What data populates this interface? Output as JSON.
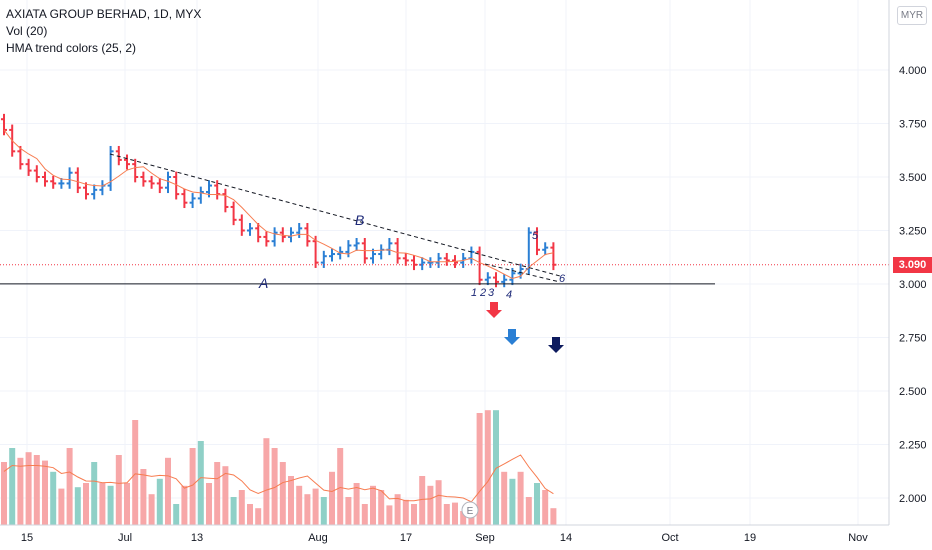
{
  "legend": {
    "symbol": "AXIATA GROUP BERHAD, 1D, MYX",
    "volume": "Vol (20)",
    "indicator": "HMA trend colors (25, 2)"
  },
  "currency_button": "MYR",
  "last_price": "3.090",
  "colors": {
    "up": "#2a7fd4",
    "down": "#f23645",
    "vol_up": "#8fd0c7",
    "vol_down": "#f7a7a8"
  },
  "chart_data": {
    "type": "line",
    "price_axis_ticks": [
      "4.000",
      "3.750",
      "3.500",
      "3.250",
      "3.000",
      "2.750",
      "2.500",
      "2.250",
      "2.000"
    ],
    "x_ticks": [
      "15",
      "Jul",
      "13",
      "Aug",
      "17",
      "Sep",
      "14",
      "Oct",
      "19",
      "Nov"
    ],
    "price_range": [
      1.9,
      4.25
    ],
    "price_line": 3.09,
    "support_level": 3.01,
    "annotations": {
      "line_A": "A",
      "line_B": "B",
      "waves": [
        "1",
        "2",
        "3",
        "4",
        "5",
        "6"
      ],
      "event_marker": "E"
    },
    "series": [
      {
        "name": "Close",
        "values": [
          3.72,
          3.62,
          3.56,
          3.53,
          3.5,
          3.48,
          3.47,
          3.47,
          3.52,
          3.45,
          3.42,
          3.44,
          3.46,
          3.62,
          3.58,
          3.56,
          3.5,
          3.48,
          3.47,
          3.45,
          3.5,
          3.42,
          3.38,
          3.4,
          3.43,
          3.46,
          3.42,
          3.36,
          3.3,
          3.25,
          3.26,
          3.22,
          3.2,
          3.24,
          3.22,
          3.24,
          3.26,
          3.2,
          3.1,
          3.13,
          3.14,
          3.15,
          3.18,
          3.19,
          3.12,
          3.14,
          3.16,
          3.19,
          3.12,
          3.11,
          3.09,
          3.1,
          3.1,
          3.12,
          3.11,
          3.1,
          3.12,
          3.15,
          3.02,
          3.03,
          3.01,
          3.02,
          3.05,
          3.07,
          3.24,
          3.16,
          3.17,
          3.09
        ]
      }
    ],
    "volume_bars": [
      0.45,
      0.55,
      0.48,
      0.52,
      0.5,
      0.46,
      0.38,
      0.26,
      0.55,
      0.27,
      0.3,
      0.45,
      0.3,
      0.28,
      0.5,
      0.3,
      0.75,
      0.4,
      0.22,
      0.33,
      0.48,
      0.15,
      0.28,
      0.55,
      0.6,
      0.3,
      0.45,
      0.42,
      0.2,
      0.25,
      0.15,
      0.12,
      0.62,
      0.55,
      0.45,
      0.35,
      0.28,
      0.22,
      0.26,
      0.2,
      0.38,
      0.55,
      0.2,
      0.3,
      0.15,
      0.28,
      0.25,
      0.14,
      0.22,
      0.18,
      0.15,
      0.35,
      0.28,
      0.32,
      0.15,
      0.16,
      0.1,
      0.16,
      0.8,
      0.82,
      0.82,
      0.38,
      0.33,
      0.38,
      0.2,
      0.3,
      0.25,
      0.12
    ],
    "volume_up": [
      false,
      true,
      false,
      false,
      false,
      false,
      true,
      false,
      false,
      true,
      false,
      true,
      false,
      true,
      false,
      false,
      false,
      false,
      false,
      true,
      false,
      true,
      false,
      false,
      true,
      false,
      false,
      false,
      true,
      false,
      false,
      false,
      false,
      false,
      false,
      false,
      false,
      false,
      false,
      true,
      false,
      false,
      false,
      false,
      false,
      false,
      false,
      false,
      false,
      false,
      false,
      false,
      false,
      false,
      false,
      false,
      false,
      false,
      false,
      false,
      true,
      false,
      true,
      false,
      false,
      true,
      false,
      false
    ]
  }
}
